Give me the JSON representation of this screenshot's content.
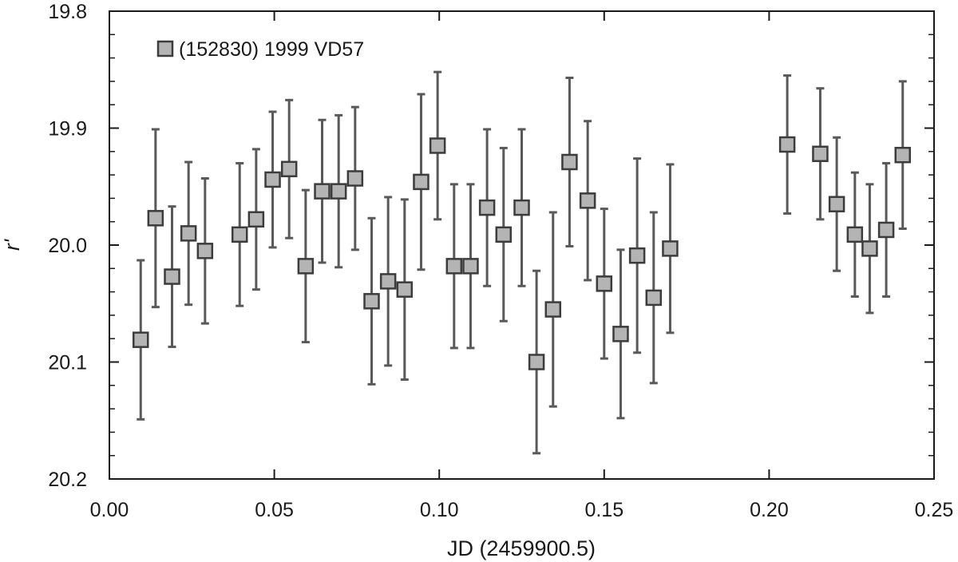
{
  "chart_data": {
    "type": "scatter",
    "title": "",
    "xlabel": "JD (2459900.5)",
    "ylabel": "r'",
    "xlim": [
      0.0,
      0.25
    ],
    "ylim": [
      20.2,
      19.8
    ],
    "y_inverted": true,
    "x_ticks": [
      "0.00",
      "0.05",
      "0.10",
      "0.15",
      "0.20",
      "0.25"
    ],
    "y_ticks": [
      "19.8",
      "19.9",
      "20.0",
      "20.1",
      "20.2"
    ],
    "grid": false,
    "legend_position": "top-left",
    "marker": "square",
    "marker_fill": "#b4b4b4",
    "marker_edge": "#3c3c3c",
    "errorbar_color": "#595959",
    "series": [
      {
        "name": "(152830) 1999 VD57",
        "points": [
          {
            "x": 0.0095,
            "y": 20.081,
            "yerr": 0.068
          },
          {
            "x": 0.014,
            "y": 19.977,
            "yerr": 0.076
          },
          {
            "x": 0.019,
            "y": 20.027,
            "yerr": 0.06
          },
          {
            "x": 0.024,
            "y": 19.99,
            "yerr": 0.061
          },
          {
            "x": 0.029,
            "y": 20.005,
            "yerr": 0.062
          },
          {
            "x": 0.0395,
            "y": 19.991,
            "yerr": 0.061
          },
          {
            "x": 0.0445,
            "y": 19.978,
            "yerr": 0.06
          },
          {
            "x": 0.0495,
            "y": 19.944,
            "yerr": 0.058
          },
          {
            "x": 0.0545,
            "y": 19.935,
            "yerr": 0.059
          },
          {
            "x": 0.0595,
            "y": 20.018,
            "yerr": 0.065
          },
          {
            "x": 0.0645,
            "y": 19.954,
            "yerr": 0.061
          },
          {
            "x": 0.0695,
            "y": 19.954,
            "yerr": 0.065
          },
          {
            "x": 0.0745,
            "y": 19.943,
            "yerr": 0.061
          },
          {
            "x": 0.0795,
            "y": 20.048,
            "yerr": 0.071
          },
          {
            "x": 0.0845,
            "y": 20.031,
            "yerr": 0.072
          },
          {
            "x": 0.0895,
            "y": 20.038,
            "yerr": 0.077
          },
          {
            "x": 0.0945,
            "y": 19.946,
            "yerr": 0.075
          },
          {
            "x": 0.0995,
            "y": 19.915,
            "yerr": 0.063
          },
          {
            "x": 0.1045,
            "y": 20.018,
            "yerr": 0.07
          },
          {
            "x": 0.1095,
            "y": 20.018,
            "yerr": 0.07
          },
          {
            "x": 0.1145,
            "y": 19.968,
            "yerr": 0.067
          },
          {
            "x": 0.1195,
            "y": 19.991,
            "yerr": 0.074
          },
          {
            "x": 0.125,
            "y": 19.968,
            "yerr": 0.067
          },
          {
            "x": 0.1295,
            "y": 20.1,
            "yerr": 0.078
          },
          {
            "x": 0.1345,
            "y": 20.055,
            "yerr": 0.083
          },
          {
            "x": 0.1395,
            "y": 19.929,
            "yerr": 0.072
          },
          {
            "x": 0.145,
            "y": 19.962,
            "yerr": 0.068
          },
          {
            "x": 0.15,
            "y": 20.033,
            "yerr": 0.064
          },
          {
            "x": 0.155,
            "y": 20.076,
            "yerr": 0.072
          },
          {
            "x": 0.16,
            "y": 20.009,
            "yerr": 0.083
          },
          {
            "x": 0.165,
            "y": 20.045,
            "yerr": 0.073
          },
          {
            "x": 0.17,
            "y": 20.003,
            "yerr": 0.072
          },
          {
            "x": 0.2055,
            "y": 19.914,
            "yerr": 0.059
          },
          {
            "x": 0.2155,
            "y": 19.922,
            "yerr": 0.056
          },
          {
            "x": 0.2205,
            "y": 19.965,
            "yerr": 0.057
          },
          {
            "x": 0.226,
            "y": 19.991,
            "yerr": 0.053
          },
          {
            "x": 0.2305,
            "y": 20.003,
            "yerr": 0.055
          },
          {
            "x": 0.2355,
            "y": 19.987,
            "yerr": 0.057
          },
          {
            "x": 0.2405,
            "y": 19.923,
            "yerr": 0.063
          }
        ]
      }
    ]
  }
}
